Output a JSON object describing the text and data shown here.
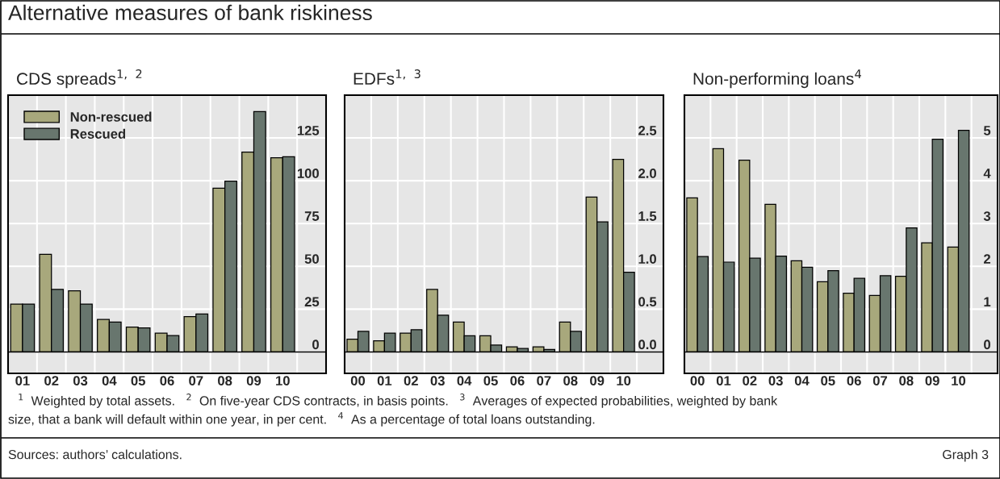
{
  "chart_data": [
    {
      "type": "bar",
      "title": "CDS spreads$^{1,}$ $^{2}$",
      "categories": [
        "01",
        "02",
        "03",
        "04",
        "05",
        "06",
        "07",
        "08",
        "09",
        "10",
        null
      ],
      "series": [
        {
          "name": "Non-rescued",
          "color": "#a8a87c",
          "values": [
            28,
            57,
            35.7,
            19,
            14.5,
            11,
            20.6,
            95.6,
            116.7,
            113.4,
            null
          ]
        },
        {
          "name": "Rescued",
          "color": "#68766e",
          "values": [
            28,
            36.6,
            28,
            17.5,
            14,
            9.6,
            22.2,
            99.8,
            140.4,
            114,
            null
          ]
        }
      ],
      "ylim": [
        -12.5,
        150
      ],
      "yticks": [
        0,
        25,
        50,
        75,
        100,
        125
      ],
      "grid": true,
      "legend": "top left",
      "annotations": [
        "Alternative measures of bank riskiness",
        "$^{1}$  Weighted by total assets.   $^{2}$  On five-year CDS contracts, in basis points.   $^{3}$  Averages of expected probabilities, weighted by bank",
        "size, that a bank will default within one year, in per cent.   $^{4}$  As a percentage of total loans outstanding.",
        "Sources: authors’ calculations.",
        "Graph 3"
      ]
    },
    {
      "type": "bar",
      "title": "EDFs$^{1,}$ $^{3}$",
      "categories": [
        "00",
        "01",
        "02",
        "03",
        "04",
        "05",
        "06",
        "07",
        "08",
        "09",
        "10",
        null
      ],
      "series": [
        {
          "color": "#a8a87c",
          "values": [
            0.15,
            0.13,
            0.22,
            0.73,
            0.35,
            0.19,
            0.06,
            0.06,
            0.35,
            1.81,
            2.25,
            null
          ]
        },
        {
          "color": "#68766e",
          "values": [
            0.24,
            0.22,
            0.26,
            0.43,
            0.19,
            0.08,
            0.04,
            0.03,
            0.24,
            1.52,
            0.93,
            null
          ]
        }
      ],
      "ylim": [
        -0.25,
        3.0
      ],
      "yticks": [
        {
          "value": 0,
          "label": "0.0"
        },
        0.5,
        {
          "value": 1,
          "label": "1.0"
        },
        1.5,
        {
          "value": 2,
          "label": "2.0"
        },
        2.5
      ],
      "grid": true
    },
    {
      "type": "bar",
      "title": "Non-performing loans$^{4}$",
      "categories": [
        "00",
        "01",
        "02",
        "03",
        "04",
        "05",
        "06",
        "07",
        "08",
        "09",
        "10",
        null
      ],
      "series": [
        {
          "color": "#a8a87c",
          "values": [
            3.6,
            4.75,
            4.48,
            3.45,
            2.13,
            1.64,
            1.37,
            1.32,
            1.77,
            2.55,
            2.45,
            null
          ]
        },
        {
          "color": "#68766e",
          "values": [
            2.23,
            2.1,
            2.19,
            2.24,
            1.98,
            1.9,
            1.72,
            1.78,
            2.9,
            4.97,
            5.18,
            null
          ]
        }
      ],
      "ylim": [
        -0.5,
        6
      ],
      "yticks": [
        0,
        1,
        2,
        3,
        4,
        5
      ],
      "grid": true
    }
  ]
}
